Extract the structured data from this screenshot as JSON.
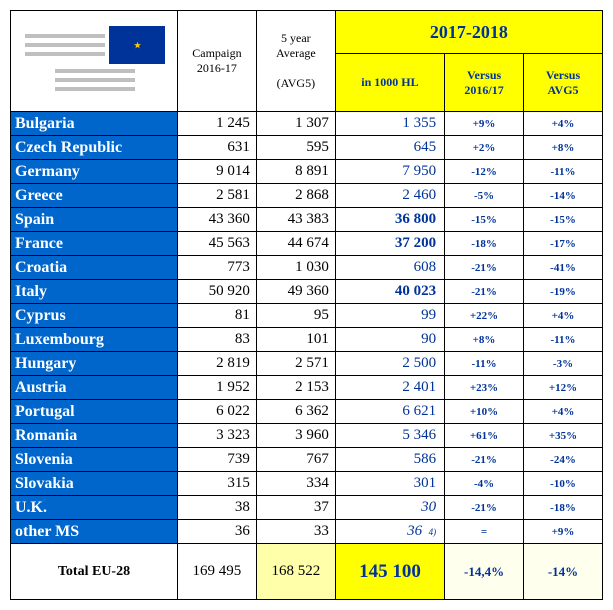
{
  "header": {
    "campaign_label_l1": "Campaign",
    "campaign_label_l2": "2016-17",
    "avg_label_l1": "5 year",
    "avg_label_l2": "Average",
    "avg_label_l3": "(AVG5)",
    "year_label": "2017-2018",
    "sub1": "in 1000 HL",
    "sub2_l1": "Versus",
    "sub2_l2": "2016/17",
    "sub3_l1": "Versus",
    "sub3_l2": "AVG5"
  },
  "rows": [
    {
      "country": "Bulgaria",
      "c1617": "1 245",
      "avg5": "1 307",
      "hl": "1 355",
      "v1": "+9%",
      "v2": "+4%",
      "bold": false,
      "ital": false
    },
    {
      "country": "Czech Republic",
      "c1617": "631",
      "avg5": "595",
      "hl": "645",
      "v1": "+2%",
      "v2": "+8%",
      "bold": false,
      "ital": false
    },
    {
      "country": "Germany",
      "c1617": "9 014",
      "avg5": "8 891",
      "hl": "7 950",
      "v1": "-12%",
      "v2": "-11%",
      "bold": false,
      "ital": false
    },
    {
      "country": "Greece",
      "c1617": "2 581",
      "avg5": "2 868",
      "hl": "2 460",
      "v1": "-5%",
      "v2": "-14%",
      "bold": false,
      "ital": false
    },
    {
      "country": "Spain",
      "c1617": "43 360",
      "avg5": "43 383",
      "hl": "36 800",
      "v1": "-15%",
      "v2": "-15%",
      "bold": true,
      "ital": false
    },
    {
      "country": "France",
      "c1617": "45 563",
      "avg5": "44 674",
      "hl": "37 200",
      "v1": "-18%",
      "v2": "-17%",
      "bold": true,
      "ital": false
    },
    {
      "country": "Croatia",
      "c1617": "773",
      "avg5": "1 030",
      "hl": "608",
      "v1": "-21%",
      "v2": "-41%",
      "bold": false,
      "ital": false
    },
    {
      "country": "Italy",
      "c1617": "50 920",
      "avg5": "49 360",
      "hl": "40 023",
      "v1": "-21%",
      "v2": "-19%",
      "bold": true,
      "ital": false
    },
    {
      "country": "Cyprus",
      "c1617": "81",
      "avg5": "95",
      "hl": "99",
      "v1": "+22%",
      "v2": "+4%",
      "bold": false,
      "ital": false
    },
    {
      "country": "Luxembourg",
      "c1617": "83",
      "avg5": "101",
      "hl": "90",
      "v1": "+8%",
      "v2": "-11%",
      "bold": false,
      "ital": false
    },
    {
      "country": "Hungary",
      "c1617": "2 819",
      "avg5": "2 571",
      "hl": "2 500",
      "v1": "-11%",
      "v2": "-3%",
      "bold": false,
      "ital": false
    },
    {
      "country": "Austria",
      "c1617": "1 952",
      "avg5": "2 153",
      "hl": "2 401",
      "v1": "+23%",
      "v2": "+12%",
      "bold": false,
      "ital": false
    },
    {
      "country": "Portugal",
      "c1617": "6 022",
      "avg5": "6 362",
      "hl": "6 621",
      "v1": "+10%",
      "v2": "+4%",
      "bold": false,
      "ital": false
    },
    {
      "country": "Romania",
      "c1617": "3 323",
      "avg5": "3 960",
      "hl": "5 346",
      "v1": "+61%",
      "v2": "+35%",
      "bold": false,
      "ital": false
    },
    {
      "country": "Slovenia",
      "c1617": "739",
      "avg5": "767",
      "hl": "586",
      "v1": "-21%",
      "v2": "-24%",
      "bold": false,
      "ital": false
    },
    {
      "country": "Slovakia",
      "c1617": "315",
      "avg5": "334",
      "hl": "301",
      "v1": "-4%",
      "v2": "-10%",
      "bold": false,
      "ital": false
    },
    {
      "country": "U.K.",
      "c1617": "38",
      "avg5": "37",
      "hl": "30",
      "v1": "-21%",
      "v2": "-18%",
      "bold": false,
      "ital": true
    },
    {
      "country": "other MS",
      "c1617": "36",
      "avg5": "33",
      "hl": "36",
      "v1": "=",
      "v2": "+9%",
      "bold": false,
      "ital": true,
      "note4": true
    }
  ],
  "total": {
    "label": "Total EU-28",
    "c1617": "169 495",
    "avg5": "168 522",
    "hl": "145 100",
    "v1": "-14,4%",
    "v2": "-14%"
  }
}
